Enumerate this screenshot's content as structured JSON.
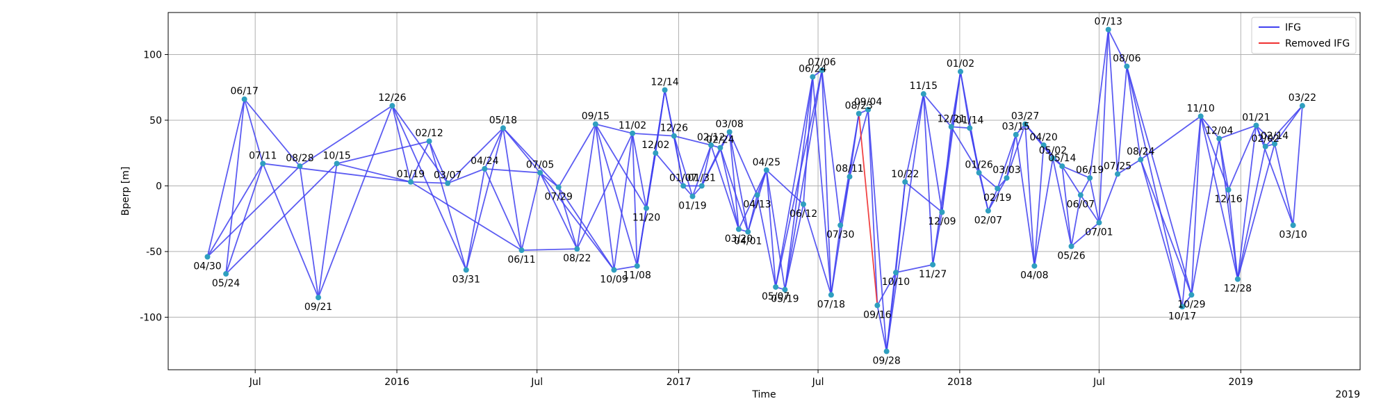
{
  "chart_data": {
    "type": "scatter",
    "xlabel": "Time",
    "ylabel": "Bperp [m]",
    "xlim": [
      "2015-03-10",
      "2019-06-05"
    ],
    "ylim": [
      -140,
      132
    ],
    "y_ticks": [
      100,
      50,
      0,
      -50,
      -100
    ],
    "x_ticks": [
      {
        "date": "2015-07-01",
        "label": "Jul"
      },
      {
        "date": "2016-01-01",
        "label": "2016"
      },
      {
        "date": "2016-07-01",
        "label": "Jul"
      },
      {
        "date": "2017-01-01",
        "label": "2017"
      },
      {
        "date": "2017-07-01",
        "label": "Jul"
      },
      {
        "date": "2018-01-01",
        "label": "2018"
      },
      {
        "date": "2018-07-01",
        "label": "Jul"
      },
      {
        "date": "2019-01-01",
        "label": "2019"
      }
    ],
    "offset_label": "2019",
    "grid": true,
    "legend_position": "top-right",
    "colors": {
      "ifg": "#4040f0",
      "removed": "#f03030",
      "point": "#2f9fbf"
    },
    "series": [
      {
        "name": "IFG",
        "kind": "line"
      },
      {
        "name": "Removed IFG",
        "kind": "line"
      }
    ],
    "points": [
      {
        "label": "04/30",
        "date": "2015-04-30",
        "bperp": -54
      },
      {
        "label": "05/24",
        "date": "2015-05-24",
        "bperp": -67
      },
      {
        "label": "06/17",
        "date": "2015-06-17",
        "bperp": 66
      },
      {
        "label": "07/11",
        "date": "2015-07-11",
        "bperp": 17
      },
      {
        "label": "08/28",
        "date": "2015-08-28",
        "bperp": 15
      },
      {
        "label": "09/21",
        "date": "2015-09-21",
        "bperp": -85
      },
      {
        "label": "10/15",
        "date": "2015-10-15",
        "bperp": 17
      },
      {
        "label": "12/26",
        "date": "2015-12-26",
        "bperp": 61
      },
      {
        "label": "01/19",
        "date": "2016-01-19",
        "bperp": 3
      },
      {
        "label": "02/12",
        "date": "2016-02-12",
        "bperp": 34
      },
      {
        "label": "03/07",
        "date": "2016-03-07",
        "bperp": 2
      },
      {
        "label": "03/31",
        "date": "2016-03-31",
        "bperp": -64
      },
      {
        "label": "04/24",
        "date": "2016-04-24",
        "bperp": 13
      },
      {
        "label": "05/18",
        "date": "2016-05-18",
        "bperp": 44
      },
      {
        "label": "06/11",
        "date": "2016-06-11",
        "bperp": -49
      },
      {
        "label": "07/05",
        "date": "2016-07-05",
        "bperp": 10
      },
      {
        "label": "07/29",
        "date": "2016-07-29",
        "bperp": -1
      },
      {
        "label": "08/22",
        "date": "2016-08-22",
        "bperp": -48
      },
      {
        "label": "09/15",
        "date": "2016-09-15",
        "bperp": 47
      },
      {
        "label": "10/09",
        "date": "2016-10-09",
        "bperp": -64
      },
      {
        "label": "11/02",
        "date": "2016-11-02",
        "bperp": 40
      },
      {
        "label": "11/08",
        "date": "2016-11-08",
        "bperp": -61
      },
      {
        "label": "11/20",
        "date": "2016-11-20",
        "bperp": -17
      },
      {
        "label": "12/02",
        "date": "2016-12-02",
        "bperp": 25
      },
      {
        "label": "12/14",
        "date": "2016-12-14",
        "bperp": 73
      },
      {
        "label": "12/26",
        "date": "2016-12-26",
        "bperp": 38
      },
      {
        "label": "01/07",
        "date": "2017-01-07",
        "bperp": 0
      },
      {
        "label": "01/19",
        "date": "2017-01-19",
        "bperp": -8
      },
      {
        "label": "01/31",
        "date": "2017-01-31",
        "bperp": 0
      },
      {
        "label": "02/12",
        "date": "2017-02-12",
        "bperp": 31
      },
      {
        "label": "02/24",
        "date": "2017-02-24",
        "bperp": 29
      },
      {
        "label": "03/08",
        "date": "2017-03-08",
        "bperp": 41
      },
      {
        "label": "03/20",
        "date": "2017-03-20",
        "bperp": -33
      },
      {
        "label": "04/01",
        "date": "2017-04-01",
        "bperp": -35
      },
      {
        "label": "04/13",
        "date": "2017-04-13",
        "bperp": -7
      },
      {
        "label": "04/25",
        "date": "2017-04-25",
        "bperp": 12
      },
      {
        "label": "05/07",
        "date": "2017-05-07",
        "bperp": -77
      },
      {
        "label": "05/19",
        "date": "2017-05-19",
        "bperp": -79
      },
      {
        "label": "06/12",
        "date": "2017-06-12",
        "bperp": -14
      },
      {
        "label": "06/24",
        "date": "2017-06-24",
        "bperp": 83
      },
      {
        "label": "07/06",
        "date": "2017-07-06",
        "bperp": 88
      },
      {
        "label": "07/18",
        "date": "2017-07-18",
        "bperp": -83
      },
      {
        "label": "07/30",
        "date": "2017-07-30",
        "bperp": -30
      },
      {
        "label": "08/11",
        "date": "2017-08-11",
        "bperp": 7
      },
      {
        "label": "08/23",
        "date": "2017-08-23",
        "bperp": 55
      },
      {
        "label": "09/04",
        "date": "2017-09-04",
        "bperp": 58
      },
      {
        "label": "09/16",
        "date": "2017-09-16",
        "bperp": -91
      },
      {
        "label": "09/28",
        "date": "2017-09-28",
        "bperp": -126
      },
      {
        "label": "10/10",
        "date": "2017-10-10",
        "bperp": -66
      },
      {
        "label": "10/22",
        "date": "2017-10-22",
        "bperp": 3
      },
      {
        "label": "11/15",
        "date": "2017-11-15",
        "bperp": 70
      },
      {
        "label": "11/27",
        "date": "2017-11-27",
        "bperp": -60
      },
      {
        "label": "12/09",
        "date": "2017-12-09",
        "bperp": -20
      },
      {
        "label": "12/21",
        "date": "2017-12-21",
        "bperp": 45
      },
      {
        "label": "01/02",
        "date": "2018-01-02",
        "bperp": 87
      },
      {
        "label": "01/14",
        "date": "2018-01-14",
        "bperp": 44
      },
      {
        "label": "01/26",
        "date": "2018-01-26",
        "bperp": 10
      },
      {
        "label": "02/07",
        "date": "2018-02-07",
        "bperp": -19
      },
      {
        "label": "02/19",
        "date": "2018-02-19",
        "bperp": -2
      },
      {
        "label": "03/03",
        "date": "2018-03-03",
        "bperp": 6
      },
      {
        "label": "03/15",
        "date": "2018-03-15",
        "bperp": 39
      },
      {
        "label": "03/27",
        "date": "2018-03-27",
        "bperp": 47
      },
      {
        "label": "04/08",
        "date": "2018-04-08",
        "bperp": -61
      },
      {
        "label": "04/20",
        "date": "2018-04-20",
        "bperp": 31
      },
      {
        "label": "05/02",
        "date": "2018-05-02",
        "bperp": 21
      },
      {
        "label": "05/14",
        "date": "2018-05-14",
        "bperp": 15
      },
      {
        "label": "05/26",
        "date": "2018-05-26",
        "bperp": -46
      },
      {
        "label": "06/07",
        "date": "2018-06-07",
        "bperp": -7
      },
      {
        "label": "06/19",
        "date": "2018-06-19",
        "bperp": 6
      },
      {
        "label": "07/01",
        "date": "2018-07-01",
        "bperp": -28
      },
      {
        "label": "07/13",
        "date": "2018-07-13",
        "bperp": 119
      },
      {
        "label": "07/25",
        "date": "2018-07-25",
        "bperp": 9
      },
      {
        "label": "08/06",
        "date": "2018-08-06",
        "bperp": 91
      },
      {
        "label": "08/24",
        "date": "2018-08-24",
        "bperp": 20
      },
      {
        "label": "10/17",
        "date": "2018-10-17",
        "bperp": -92
      },
      {
        "label": "10/29",
        "date": "2018-10-29",
        "bperp": -83
      },
      {
        "label": "11/10",
        "date": "2018-11-10",
        "bperp": 53
      },
      {
        "label": "12/04",
        "date": "2018-12-04",
        "bperp": 36
      },
      {
        "label": "12/16",
        "date": "2018-12-16",
        "bperp": -3
      },
      {
        "label": "12/28",
        "date": "2018-12-28",
        "bperp": -71
      },
      {
        "label": "01/21",
        "date": "2019-01-21",
        "bperp": 46
      },
      {
        "label": "02/02",
        "date": "2019-02-02",
        "bperp": 30
      },
      {
        "label": "02/14",
        "date": "2019-02-14",
        "bperp": 32
      },
      {
        "label": "03/10",
        "date": "2019-03-10",
        "bperp": -30
      },
      {
        "label": "03/22",
        "date": "2019-03-22",
        "bperp": 61
      }
    ],
    "edges": [
      [
        0,
        2
      ],
      [
        0,
        3
      ],
      [
        0,
        4
      ],
      [
        1,
        2
      ],
      [
        1,
        3
      ],
      [
        1,
        6
      ],
      [
        2,
        3
      ],
      [
        2,
        4
      ],
      [
        3,
        5
      ],
      [
        3,
        8
      ],
      [
        4,
        5
      ],
      [
        4,
        7
      ],
      [
        5,
        6
      ],
      [
        5,
        7
      ],
      [
        6,
        9
      ],
      [
        6,
        8
      ],
      [
        7,
        8
      ],
      [
        7,
        11
      ],
      [
        7,
        10
      ],
      [
        8,
        9
      ],
      [
        8,
        10
      ],
      [
        8,
        14
      ],
      [
        9,
        11
      ],
      [
        9,
        10
      ],
      [
        10,
        12
      ],
      [
        10,
        13
      ],
      [
        11,
        12
      ],
      [
        11,
        13
      ],
      [
        12,
        13
      ],
      [
        12,
        15
      ],
      [
        12,
        14
      ],
      [
        13,
        14
      ],
      [
        13,
        16
      ],
      [
        13,
        15
      ],
      [
        14,
        15
      ],
      [
        14,
        17
      ],
      [
        15,
        16
      ],
      [
        15,
        17
      ],
      [
        15,
        19
      ],
      [
        16,
        17
      ],
      [
        16,
        18
      ],
      [
        16,
        19
      ],
      [
        17,
        18
      ],
      [
        17,
        20
      ],
      [
        18,
        19
      ],
      [
        18,
        20
      ],
      [
        18,
        21
      ],
      [
        18,
        22
      ],
      [
        19,
        20
      ],
      [
        19,
        21
      ],
      [
        20,
        21
      ],
      [
        20,
        22
      ],
      [
        20,
        25
      ],
      [
        21,
        22
      ],
      [
        21,
        23
      ],
      [
        21,
        24
      ],
      [
        22,
        23
      ],
      [
        22,
        24
      ],
      [
        23,
        24
      ],
      [
        23,
        26
      ],
      [
        24,
        25
      ],
      [
        24,
        26
      ],
      [
        25,
        26
      ],
      [
        25,
        27
      ],
      [
        25,
        29
      ],
      [
        26,
        27
      ],
      [
        26,
        28
      ],
      [
        27,
        28
      ],
      [
        27,
        29
      ],
      [
        28,
        29
      ],
      [
        28,
        30
      ],
      [
        28,
        31
      ],
      [
        29,
        30
      ],
      [
        29,
        32
      ],
      [
        30,
        31
      ],
      [
        30,
        32
      ],
      [
        30,
        33
      ],
      [
        31,
        32
      ],
      [
        31,
        33
      ],
      [
        31,
        34
      ],
      [
        32,
        33
      ],
      [
        32,
        35
      ],
      [
        33,
        34
      ],
      [
        33,
        35
      ],
      [
        34,
        35
      ],
      [
        34,
        36
      ],
      [
        35,
        36
      ],
      [
        35,
        37
      ],
      [
        35,
        38
      ],
      [
        36,
        37
      ],
      [
        36,
        39
      ],
      [
        36,
        40
      ],
      [
        37,
        38
      ],
      [
        37,
        39
      ],
      [
        37,
        40
      ],
      [
        38,
        39
      ],
      [
        38,
        41
      ],
      [
        39,
        40
      ],
      [
        39,
        41
      ],
      [
        40,
        41
      ],
      [
        40,
        42
      ],
      [
        41,
        42
      ],
      [
        41,
        43
      ],
      [
        42,
        43
      ],
      [
        42,
        44
      ],
      [
        43,
        44
      ],
      [
        43,
        45
      ],
      [
        44,
        45
      ],
      [
        45,
        47
      ],
      [
        45,
        46
      ],
      [
        46,
        47
      ],
      [
        46,
        48
      ],
      [
        47,
        48
      ],
      [
        47,
        49
      ],
      [
        47,
        50
      ],
      [
        48,
        49
      ],
      [
        48,
        51
      ],
      [
        49,
        50
      ],
      [
        49,
        52
      ],
      [
        50,
        51
      ],
      [
        50,
        53
      ],
      [
        50,
        52
      ],
      [
        51,
        52
      ],
      [
        51,
        54
      ],
      [
        52,
        53
      ],
      [
        52,
        54
      ],
      [
        53,
        54
      ],
      [
        53,
        55
      ],
      [
        53,
        56
      ],
      [
        54,
        55
      ],
      [
        54,
        56
      ],
      [
        55,
        56
      ],
      [
        55,
        57
      ],
      [
        56,
        57
      ],
      [
        56,
        58
      ],
      [
        57,
        58
      ],
      [
        57,
        59
      ],
      [
        58,
        59
      ],
      [
        58,
        60
      ],
      [
        59,
        60
      ],
      [
        59,
        61
      ],
      [
        60,
        61
      ],
      [
        60,
        62
      ],
      [
        61,
        62
      ],
      [
        61,
        63
      ],
      [
        61,
        64
      ],
      [
        62,
        63
      ],
      [
        62,
        64
      ],
      [
        63,
        64
      ],
      [
        63,
        65
      ],
      [
        64,
        65
      ],
      [
        64,
        66
      ],
      [
        65,
        66
      ],
      [
        65,
        67
      ],
      [
        65,
        68
      ],
      [
        66,
        67
      ],
      [
        66,
        69
      ],
      [
        67,
        68
      ],
      [
        67,
        69
      ],
      [
        68,
        69
      ],
      [
        68,
        70
      ],
      [
        69,
        70
      ],
      [
        69,
        71
      ],
      [
        70,
        71
      ],
      [
        70,
        72
      ],
      [
        71,
        72
      ],
      [
        71,
        73
      ],
      [
        72,
        73
      ],
      [
        72,
        74
      ],
      [
        72,
        75
      ],
      [
        73,
        74
      ],
      [
        73,
        75
      ],
      [
        73,
        76
      ],
      [
        74,
        75
      ],
      [
        74,
        76
      ],
      [
        75,
        76
      ],
      [
        75,
        77
      ],
      [
        76,
        77
      ],
      [
        76,
        78
      ],
      [
        76,
        79
      ],
      [
        77,
        78
      ],
      [
        77,
        79
      ],
      [
        77,
        80
      ],
      [
        78,
        79
      ],
      [
        78,
        80
      ],
      [
        79,
        80
      ],
      [
        79,
        81
      ],
      [
        79,
        82
      ],
      [
        80,
        81
      ],
      [
        80,
        82
      ],
      [
        80,
        83
      ],
      [
        81,
        82
      ],
      [
        81,
        84
      ],
      [
        82,
        83
      ],
      [
        82,
        84
      ],
      [
        83,
        84
      ]
    ],
    "removed_edges": [
      [
        44,
        46
      ]
    ]
  }
}
